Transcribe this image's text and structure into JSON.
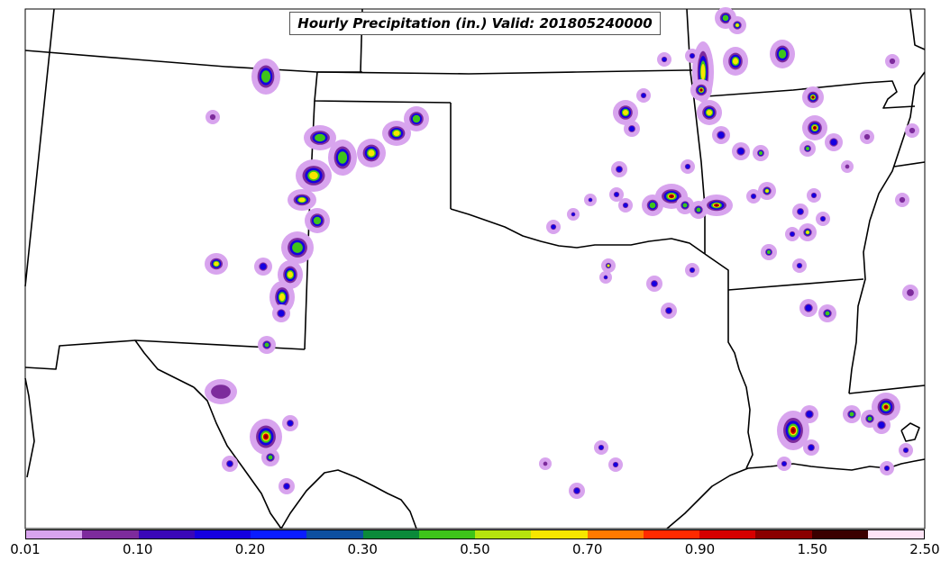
{
  "title": "Hourly Precipitation (in.) Valid: 201805240000",
  "colorbar": {
    "colors": [
      "#d8a4ee",
      "#7d2b9c",
      "#3a07b8",
      "#1500e0",
      "#0a1cff",
      "#0d4fa0",
      "#0b8a3a",
      "#3ec41a",
      "#b6e40e",
      "#f7e600",
      "#ff7a00",
      "#ff2a00",
      "#d60000",
      "#8a0000",
      "#3a0000",
      "#fde3f5"
    ],
    "tick_labels": [
      "0.01",
      "0.10",
      "0.20",
      "0.30",
      "0.50",
      "0.70",
      "0.90",
      "1.50",
      "2.50"
    ]
  },
  "legend_colors": {
    "light": "#d8a4ee",
    "purple": "#7d2b9c",
    "blue": "#1500e0",
    "green": "#3ec41a",
    "yellow": "#f7e600",
    "orange": "#ff7a00",
    "red": "#d60000",
    "darkred": "#8a0000"
  }
}
